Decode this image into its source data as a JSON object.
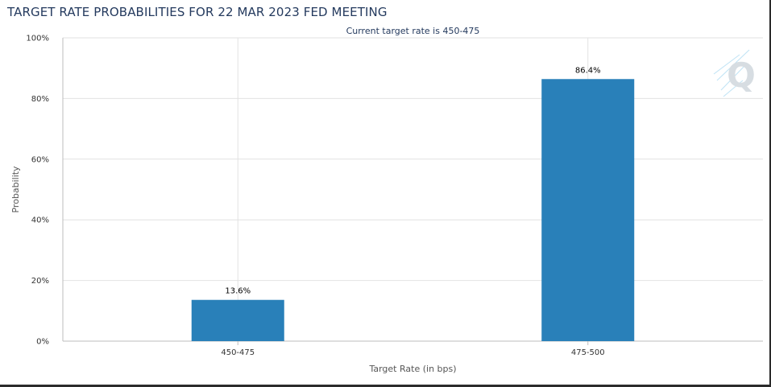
{
  "title": "TARGET RATE PROBABILITIES FOR 22 MAR 2023 FED MEETING",
  "chart_data": {
    "type": "bar",
    "title": "TARGET RATE PROBABILITIES FOR 22 MAR 2023 FED MEETING",
    "subtitle": "Current target rate is 450-475",
    "xlabel": "Target Rate (in bps)",
    "ylabel": "Probability",
    "categories": [
      "450-475",
      "475-500"
    ],
    "values": [
      13.6,
      86.4
    ],
    "data_labels": [
      "13.6%",
      "86.4%"
    ],
    "ylim": [
      0,
      100
    ],
    "yticks": [
      0,
      20,
      40,
      60,
      80,
      100
    ],
    "ytick_labels": [
      "0%",
      "20%",
      "40%",
      "60%",
      "80%",
      "100%"
    ],
    "grid": true,
    "legend": "none",
    "colors": {
      "bar": "#2980b9",
      "grid": "#e2e2e2",
      "axis": "#bdbdbd",
      "title": "#243a5e"
    }
  },
  "watermark": {
    "letter": "Q"
  }
}
